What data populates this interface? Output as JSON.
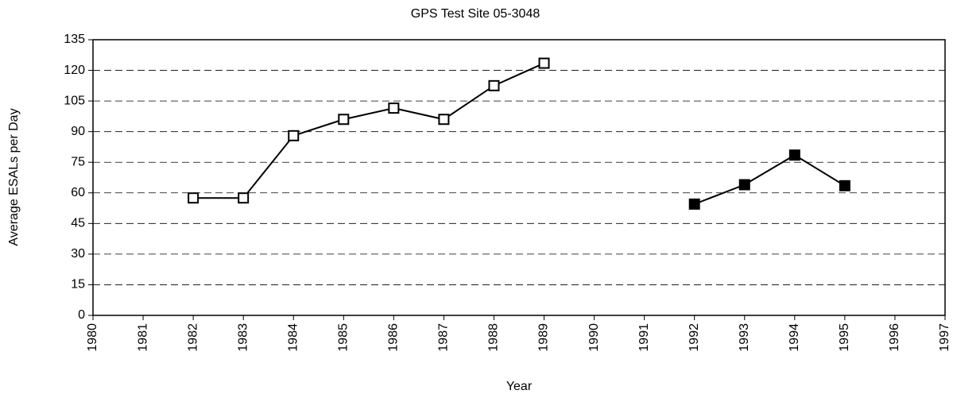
{
  "chart_data": {
    "type": "line",
    "title": "GPS Test Site 05-3048",
    "x_label": "Year",
    "y_label": "Average ESALs per Day",
    "x": [
      1982,
      1983,
      1984,
      1985,
      1986,
      1987,
      1988,
      1989,
      1990,
      1991,
      1992,
      1993,
      1994,
      1995
    ],
    "series": [
      {
        "color": "#000000",
        "marker": "open-square",
        "values": [
          57.5,
          57.5,
          88,
          96,
          101.5,
          96,
          112.5,
          123.5,
          null,
          null,
          null,
          null,
          null,
          null
        ]
      },
      {
        "color": "#000000",
        "marker": "filled-square",
        "values": [
          null,
          null,
          null,
          null,
          null,
          null,
          null,
          null,
          null,
          null,
          54.5,
          64,
          78.5,
          63.5
        ]
      }
    ],
    "xlim": [
      1980,
      1997
    ],
    "xticks": [
      1980,
      1981,
      1982,
      1983,
      1984,
      1985,
      1986,
      1987,
      1988,
      1989,
      1990,
      1991,
      1992,
      1993,
      1994,
      1995,
      1996,
      1997
    ],
    "ylim": [
      0,
      135
    ],
    "yticks": [
      0,
      15,
      30,
      45,
      60,
      75,
      90,
      105,
      120,
      135
    ],
    "grid": true
  }
}
